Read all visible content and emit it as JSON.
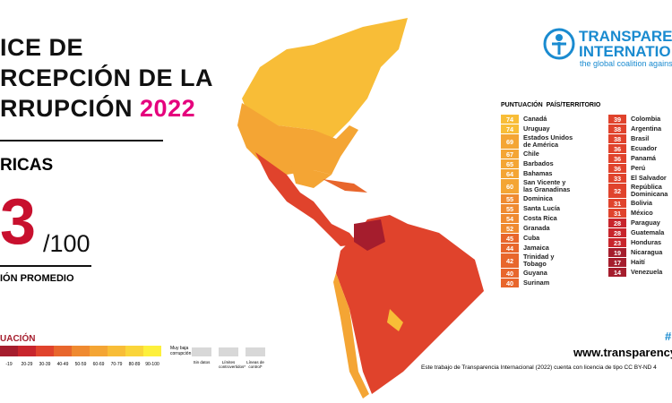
{
  "header": {
    "title_lines": [
      "ICE DE",
      "RCEPCIÓN DE LA",
      "RRUPCIÓN"
    ],
    "year": "2022",
    "region": "RICAS",
    "score": "3",
    "score_max": "/100",
    "score_caption": "IÓN PROMEDIO"
  },
  "logo": {
    "line1": "TRANSPARE",
    "line2": "INTERNATIO",
    "tagline": "the global coalition against"
  },
  "legend": {
    "title": "UACIÓN",
    "high_label": "Muy baja corrupción",
    "bins": [
      {
        "label": "-19",
        "color": "#a51d2d"
      },
      {
        "label": "20-29",
        "color": "#c8252c"
      },
      {
        "label": "30-39",
        "color": "#e0432c"
      },
      {
        "label": "40-49",
        "color": "#e8662c"
      },
      {
        "label": "50-59",
        "color": "#ef8a30"
      },
      {
        "label": "60-69",
        "color": "#f4a534"
      },
      {
        "label": "70-79",
        "color": "#f8bd37"
      },
      {
        "label": "80-89",
        "color": "#fad53a"
      },
      {
        "label": "90-100",
        "color": "#fdf03c"
      }
    ],
    "extras": [
      "Sin datos",
      "Límites controvertidos*",
      "Líneas de control*"
    ]
  },
  "table": {
    "header_score": "PUNTUACIÓN",
    "header_country": "PAÍS/TERRITORIO",
    "left": [
      [
        74,
        "Canadá",
        "#f8bd37"
      ],
      [
        74,
        "Uruguay",
        "#f8bd37"
      ],
      [
        69,
        "Estados Unidos de América",
        "#f4a534"
      ],
      [
        67,
        "Chile",
        "#f4a534"
      ],
      [
        65,
        "Barbados",
        "#f4a534"
      ],
      [
        64,
        "Bahamas",
        "#f4a534"
      ],
      [
        60,
        "San Vicente y las Granadinas",
        "#f4a534"
      ],
      [
        55,
        "Dominica",
        "#ef8a30"
      ],
      [
        55,
        "Santa Lucía",
        "#ef8a30"
      ],
      [
        54,
        "Costa Rica",
        "#ef8a30"
      ],
      [
        52,
        "Granada",
        "#ef8a30"
      ],
      [
        45,
        "Cuba",
        "#e8662c"
      ],
      [
        44,
        "Jamaica",
        "#e8662c"
      ],
      [
        42,
        "Trinidad y Tobago",
        "#e8662c"
      ],
      [
        40,
        "Guyana",
        "#e8662c"
      ],
      [
        40,
        "Surinam",
        "#e8662c"
      ]
    ],
    "right": [
      [
        39,
        "Colombia",
        "#e0432c"
      ],
      [
        38,
        "Argentina",
        "#e0432c"
      ],
      [
        38,
        "Brasil",
        "#e0432c"
      ],
      [
        36,
        "Ecuador",
        "#e0432c"
      ],
      [
        36,
        "Panamá",
        "#e0432c"
      ],
      [
        36,
        "Perú",
        "#e0432c"
      ],
      [
        33,
        "El Salvador",
        "#e0432c"
      ],
      [
        32,
        "República Dominicana",
        "#e0432c"
      ],
      [
        31,
        "Bolivia",
        "#e0432c"
      ],
      [
        31,
        "México",
        "#e0432c"
      ],
      [
        28,
        "Paraguay",
        "#c8252c"
      ],
      [
        28,
        "Guatemala",
        "#c8252c"
      ],
      [
        23,
        "Honduras",
        "#c8252c"
      ],
      [
        19,
        "Nicaragua",
        "#a51d2d"
      ],
      [
        17,
        "Haití",
        "#a51d2d"
      ],
      [
        14,
        "Venezuela",
        "#a51d2d"
      ]
    ]
  },
  "footer": {
    "hash": "#",
    "url": "www.transparency",
    "license": "Este trabajo de Transparencia Internacional (2022) cuenta con licencia de tipo CC BY-ND 4"
  }
}
